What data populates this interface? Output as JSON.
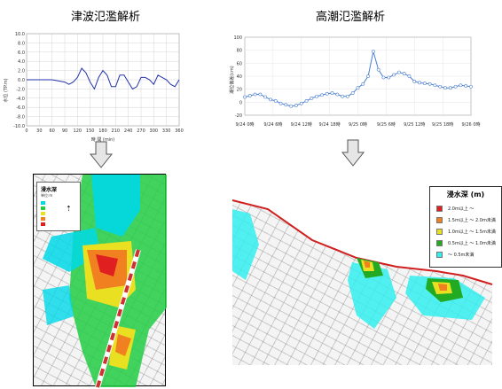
{
  "left_panel": {
    "title": "津波氾濫解析",
    "chart_data": {
      "type": "line",
      "xlabel": "時 間 (min)",
      "ylabel": "水位 (TP.m)",
      "x_ticks": [
        "0",
        "30",
        "60",
        "90",
        "120",
        "150",
        "180",
        "210",
        "240",
        "270",
        "300",
        "330",
        "360"
      ],
      "y_ticks": [
        "10.0",
        "8.0",
        "6.0",
        "4.0",
        "2.0",
        "0.0",
        "-2.0",
        "-4.0",
        "-6.0",
        "-8.0",
        "-10.0"
      ],
      "xlim": [
        0,
        360
      ],
      "ylim": [
        -10,
        10
      ],
      "grid": true,
      "x": [
        0,
        60,
        90,
        100,
        110,
        120,
        130,
        140,
        150,
        160,
        170,
        180,
        190,
        200,
        210,
        220,
        230,
        240,
        250,
        260,
        270,
        280,
        290,
        300,
        310,
        320,
        330,
        340,
        350,
        360
      ],
      "y": [
        0,
        0,
        -0.5,
        -1,
        -0.5,
        0.5,
        2.5,
        1.5,
        -0.5,
        -2.0,
        0.5,
        2.0,
        1.0,
        -1.5,
        -1.5,
        1.0,
        1.0,
        -0.5,
        -2.0,
        -1.5,
        0.5,
        0.5,
        0,
        -1.0,
        1.0,
        0.5,
        0.0,
        -1.0,
        -1.5,
        0
      ]
    },
    "map": {
      "legend_title": "浸水深",
      "legend_unit": "単位:m",
      "legend_items": [
        {
          "color": "#00d8e8"
        },
        {
          "color": "#22cc44"
        },
        {
          "color": "#e8e020"
        },
        {
          "color": "#f08020"
        },
        {
          "color": "#e02020"
        }
      ]
    }
  },
  "right_panel": {
    "title": "高潮氾濫解析",
    "chart_data": {
      "type": "line",
      "ylabel": "潮位偏差(cm)",
      "x_ticks": [
        "9/24 0時",
        "9/24 6時",
        "9/24 12時",
        "9/24 18時",
        "9/25 0時",
        "9/25 6時",
        "9/25 12時",
        "9/25 18時",
        "9/26 0時"
      ],
      "y_ticks": [
        "100",
        "80",
        "60",
        "40",
        "20",
        "0",
        "-20"
      ],
      "ylim": [
        -20,
        100
      ],
      "grid": true,
      "y": [
        8,
        10,
        12,
        12,
        8,
        4,
        2,
        -2,
        -4,
        -6,
        -5,
        -2,
        2,
        6,
        9,
        11,
        13,
        14,
        12,
        9,
        9,
        14,
        22,
        28,
        40,
        78,
        50,
        38,
        38,
        42,
        46,
        44,
        40,
        32,
        30,
        29,
        28,
        26,
        24,
        22,
        22,
        24,
        26,
        25,
        24
      ]
    },
    "map": {
      "legend_title": "浸水深 (m)",
      "legend_items": [
        {
          "label": "2.0m以上 ～",
          "color": "#e02020"
        },
        {
          "label": "1.5m以上 ～ 2.0m未満",
          "color": "#f08020"
        },
        {
          "label": "1.0m以上 ～ 1.5m未満",
          "color": "#e8e020"
        },
        {
          "label": "0.5m以上 ～ 1.0m未満",
          "color": "#22aa22"
        },
        {
          "label": "～ 0.5m未満",
          "color": "#33eeee"
        }
      ]
    }
  },
  "colors": {
    "line": "#2233aa",
    "right_line": "#4a7fd0",
    "arrow_fill": "#e6e6e6",
    "arrow_stroke": "#555555"
  }
}
